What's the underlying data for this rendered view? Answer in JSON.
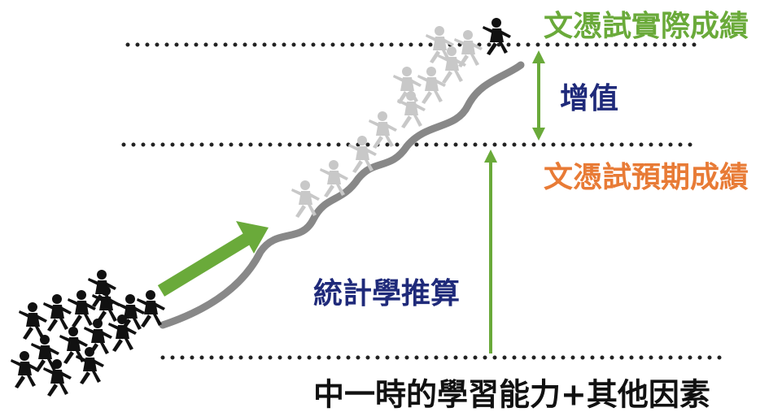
{
  "labels": {
    "actual": "文憑試實際成績",
    "value_added": "增值",
    "expected": "文憑試預期成績",
    "statistical_inference": "統計學推算",
    "baseline": "中一時的學習能力+其他因素"
  }
}
